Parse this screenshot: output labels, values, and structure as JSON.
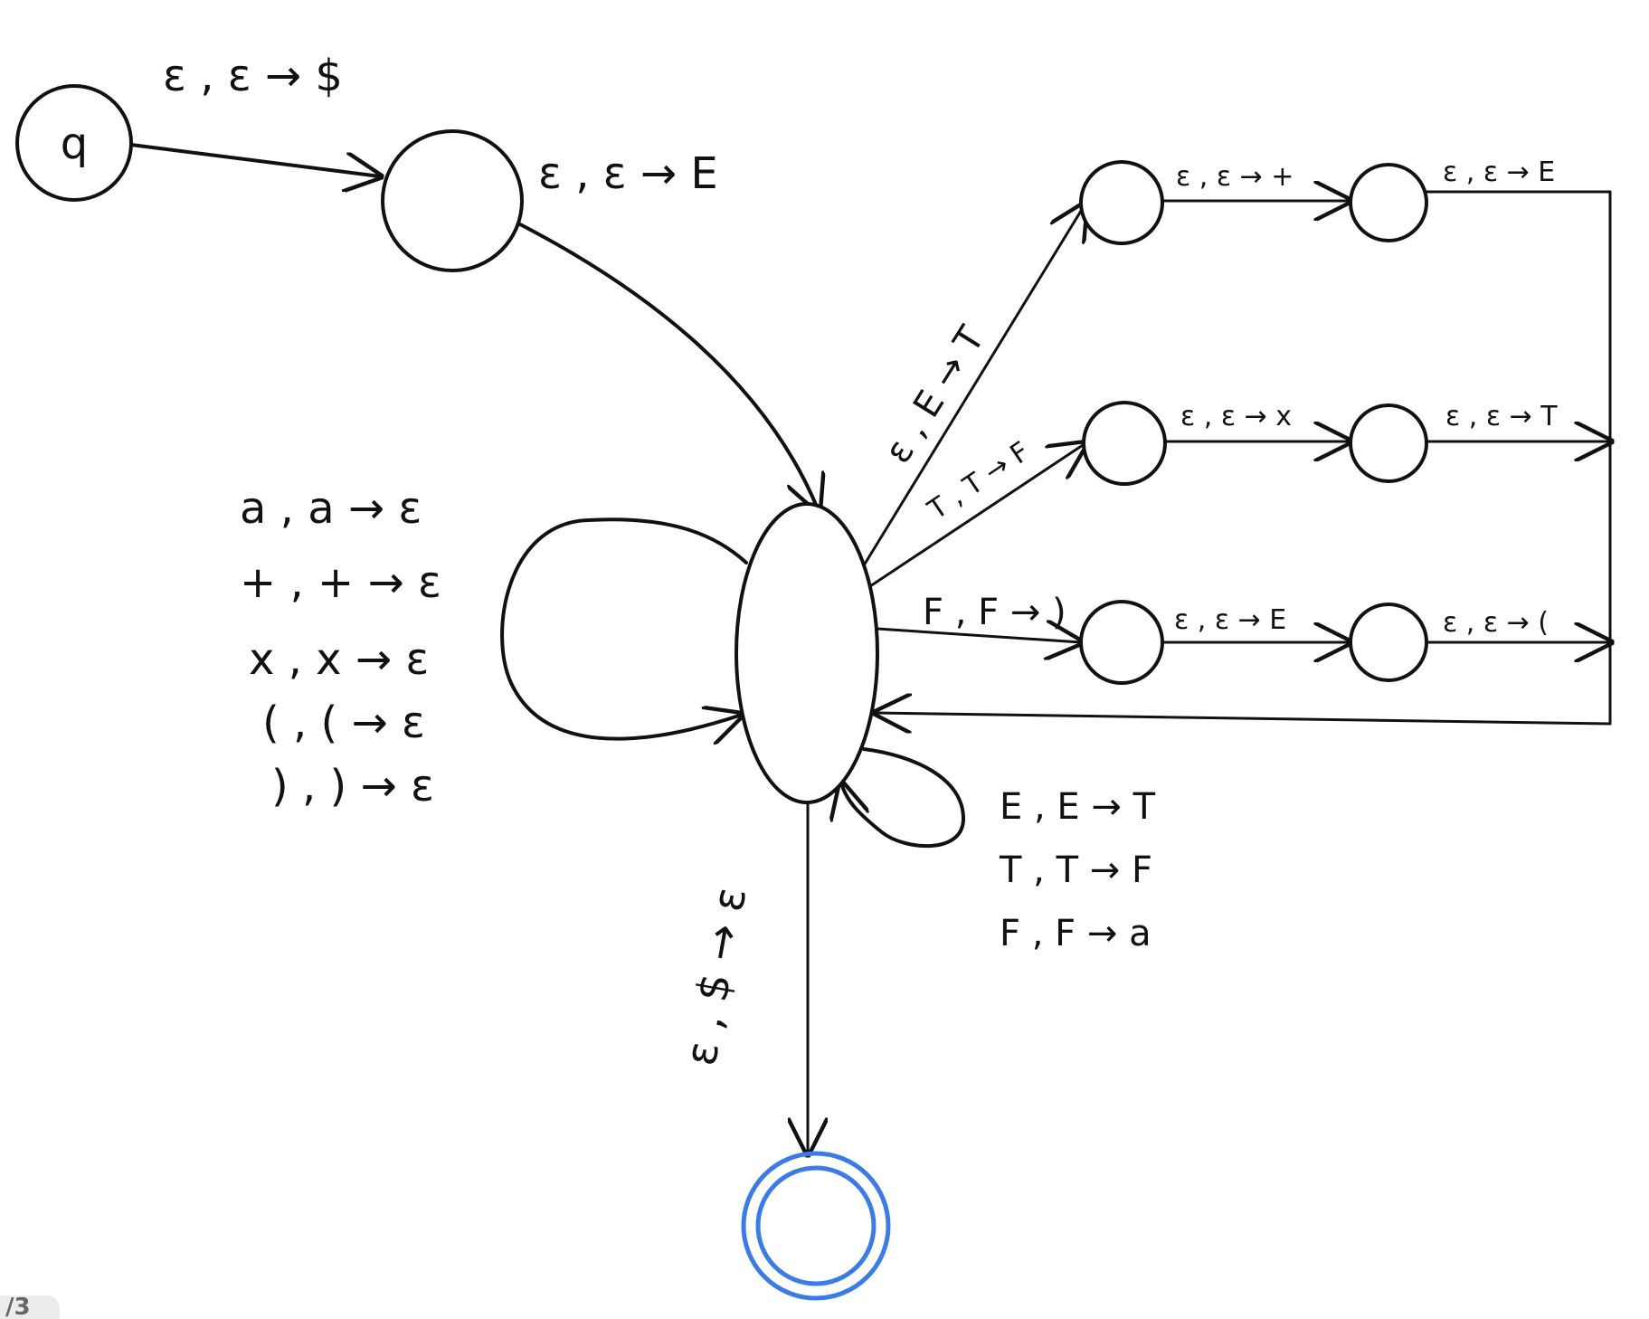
{
  "diagram": {
    "start_state_label": "q",
    "edges": {
      "q_to_s1": "ε , ε → $",
      "s1_to_main": "ε , ε → E",
      "main_to_top": "ε , E → T",
      "main_to_mid": "T , T → F",
      "main_to_bot": "F , F → )",
      "top_a_to_b": "ε , ε → +",
      "top_b_out": "ε , ε → E",
      "mid_a_to_b": "ε , ε → x",
      "mid_b_out": "ε , ε → T",
      "bot_a_to_b": "ε , ε → E",
      "bot_b_out": "ε , ε → (",
      "main_to_accept": "ε , $ → ε"
    },
    "left_loop_labels": [
      "a , a → ε",
      "+ , + → ε",
      "x , x → ε",
      "( , ( → ε",
      ") , ) → ε"
    ],
    "right_loop_labels": [
      "E , E → T",
      "T , T → F",
      "F , F → a"
    ]
  },
  "page_indicator": "/3"
}
